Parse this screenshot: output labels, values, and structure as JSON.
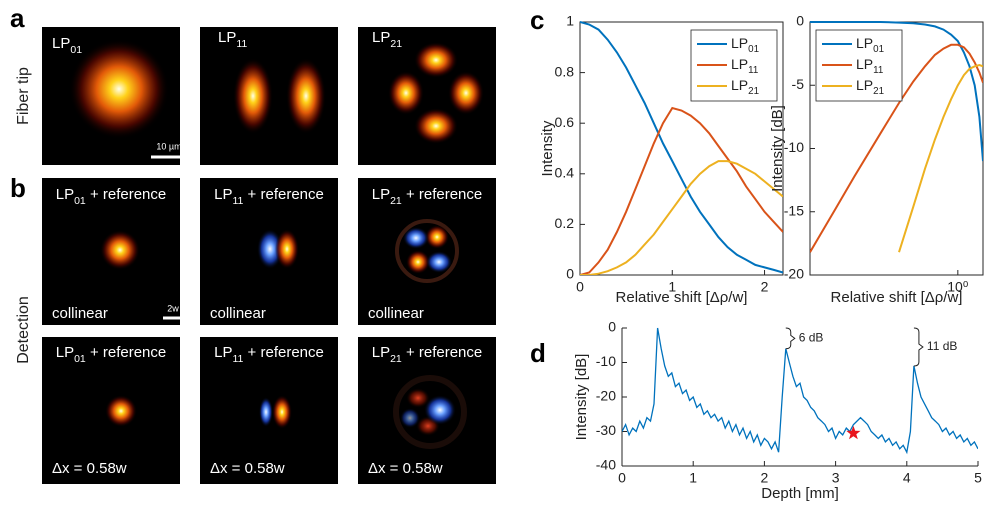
{
  "figure": {
    "panel_labels": [
      "a",
      "b",
      "c",
      "d"
    ],
    "row_labels": [
      "Fiber tip",
      "Detection"
    ],
    "fiber_tip": [
      {
        "label": "LP01",
        "scale_bar": "10 µm"
      },
      {
        "label": "LP11"
      },
      {
        "label": "LP21"
      }
    ],
    "collinear": [
      {
        "label": "LP01 + reference",
        "note": "collinear",
        "scale_bar": "2w"
      },
      {
        "label": "LP11 + reference",
        "note": "collinear"
      },
      {
        "label": "LP21 + reference",
        "note": "collinear"
      }
    ],
    "shifted": [
      {
        "label": "LP01 + reference",
        "note": "Δx = 0.58w"
      },
      {
        "label": "LP11 + reference",
        "note": "Δx = 0.58w"
      },
      {
        "label": "LP21 + reference",
        "note": "Δx = 0.58w"
      }
    ]
  },
  "chart_data": [
    {
      "type": "line",
      "xlabel": "Relative shift [Δρ/w]",
      "ylabel": "Intensity",
      "legend": "upper right",
      "box": true,
      "x": [
        0,
        0.1,
        0.2,
        0.3,
        0.4,
        0.5,
        0.6,
        0.7,
        0.8,
        0.9,
        1,
        1.1,
        1.2,
        1.3,
        1.4,
        1.5,
        1.6,
        1.7,
        1.8,
        1.9,
        2,
        2.1,
        2.2
      ],
      "xlim": [
        0,
        2.2
      ],
      "xticks": [
        0,
        1,
        2
      ],
      "ylim": [
        0,
        1
      ],
      "yticks": [
        0,
        0.2,
        0.4,
        0.6,
        0.8,
        1
      ],
      "series": [
        {
          "name": "LP01",
          "color": "#0072bd",
          "values": [
            1,
            0.99,
            0.97,
            0.93,
            0.88,
            0.82,
            0.75,
            0.68,
            0.6,
            0.52,
            0.45,
            0.38,
            0.31,
            0.25,
            0.2,
            0.15,
            0.11,
            0.08,
            0.06,
            0.04,
            0.03,
            0.02,
            0.01
          ]
        },
        {
          "name": "LP11",
          "color": "#d95319",
          "values": [
            0,
            0.01,
            0.05,
            0.1,
            0.17,
            0.25,
            0.34,
            0.43,
            0.52,
            0.6,
            0.66,
            0.65,
            0.63,
            0.6,
            0.56,
            0.51,
            0.46,
            0.41,
            0.35,
            0.3,
            0.25,
            0.21,
            0.17
          ]
        },
        {
          "name": "LP21",
          "color": "#edb120",
          "values": [
            0,
            0,
            0.005,
            0.015,
            0.03,
            0.05,
            0.08,
            0.12,
            0.16,
            0.21,
            0.26,
            0.31,
            0.36,
            0.4,
            0.43,
            0.45,
            0.45,
            0.44,
            0.42,
            0.4,
            0.37,
            0.34,
            0.31
          ]
        }
      ]
    },
    {
      "type": "line",
      "xscale": "log",
      "xlabel": "Relative shift [Δρ/w]",
      "ylabel": "Intensity [dB]",
      "legend": "upper left",
      "box": true,
      "x": [
        0.1,
        0.15,
        0.2,
        0.3,
        0.4,
        0.5,
        0.6,
        0.7,
        0.8,
        0.9,
        1,
        1.1,
        1.2,
        1.3,
        1.4,
        1.48
      ],
      "xlim": [
        0.1,
        1.48
      ],
      "xticks": [
        {
          "value": 1,
          "label": "10⁰"
        }
      ],
      "ylim": [
        -20,
        0
      ],
      "yticks": [
        0,
        -5,
        -10,
        -15,
        -20
      ],
      "series": [
        {
          "name": "LP01",
          "color": "#0072bd",
          "values": [
            0,
            0,
            0,
            0,
            -0.05,
            -0.1,
            -0.2,
            -0.35,
            -0.6,
            -1,
            -1.5,
            -2.4,
            -3.5,
            -5,
            -7.5,
            -11
          ]
        },
        {
          "name": "LP11",
          "color": "#d95319",
          "values": [
            -18.2,
            -14.7,
            -12.2,
            -8.8,
            -6.4,
            -4.7,
            -3.5,
            -2.6,
            -2.1,
            -1.8,
            -1.8,
            -2,
            -2.5,
            -3.2,
            -4,
            -4.8
          ]
        },
        {
          "name": "LP21",
          "color": "#edb120",
          "values": [
            null,
            null,
            null,
            null,
            -18.2,
            -14.6,
            -11.6,
            -9.3,
            -7.5,
            -6.1,
            -5,
            -4.2,
            -3.7,
            -3.5,
            -3.4,
            -3.5
          ]
        }
      ]
    },
    {
      "type": "line",
      "xlabel": "Depth [mm]",
      "ylabel": "Intensity [dB]",
      "box": false,
      "x": [
        0,
        0.05,
        0.1,
        0.15,
        0.2,
        0.25,
        0.3,
        0.35,
        0.4,
        0.45,
        0.5,
        0.55,
        0.6,
        0.65,
        0.7,
        0.75,
        0.8,
        0.85,
        0.9,
        0.95,
        1,
        1.05,
        1.1,
        1.15,
        1.2,
        1.25,
        1.3,
        1.35,
        1.4,
        1.45,
        1.5,
        1.55,
        1.6,
        1.65,
        1.7,
        1.75,
        1.8,
        1.85,
        1.9,
        1.95,
        2,
        2.05,
        2.1,
        2.15,
        2.2,
        2.25,
        2.3,
        2.35,
        2.4,
        2.45,
        2.5,
        2.55,
        2.6,
        2.65,
        2.7,
        2.75,
        2.8,
        2.85,
        2.9,
        2.95,
        3,
        3.05,
        3.1,
        3.15,
        3.2,
        3.25,
        3.3,
        3.35,
        3.4,
        3.45,
        3.5,
        3.55,
        3.6,
        3.65,
        3.7,
        3.75,
        3.8,
        3.85,
        3.9,
        3.95,
        4,
        4.05,
        4.1,
        4.15,
        4.2,
        4.25,
        4.3,
        4.35,
        4.4,
        4.45,
        4.5,
        4.55,
        4.6,
        4.65,
        4.7,
        4.75,
        4.8,
        4.85,
        4.9,
        4.95,
        5
      ],
      "xlim": [
        0,
        5
      ],
      "xticks": [
        0,
        1,
        2,
        3,
        4,
        5
      ],
      "ylim": [
        -40,
        0
      ],
      "yticks": [
        0,
        -10,
        -20,
        -30,
        -40
      ],
      "series": [
        {
          "color": "#0072bd",
          "values": [
            -30,
            -28,
            -31,
            -29,
            -30,
            -27,
            -29,
            -26,
            -27,
            -22,
            0,
            -6,
            -11,
            -14,
            -13,
            -17,
            -16,
            -19,
            -18,
            -21,
            -20,
            -23,
            -22,
            -25,
            -24,
            -26,
            -25,
            -27,
            -26,
            -29,
            -27,
            -30,
            -28,
            -31,
            -29,
            -32,
            -30,
            -33,
            -31,
            -34,
            -32,
            -33,
            -35,
            -33,
            -36,
            -20,
            -6,
            -10,
            -14,
            -17,
            -16,
            -20,
            -21,
            -23,
            -24,
            -26,
            -27,
            -28,
            -30,
            -29,
            -32,
            -30,
            -31,
            -29,
            -30,
            -28,
            -27,
            -26,
            -27,
            -28,
            -30,
            -31,
            -32,
            -31,
            -33,
            -32,
            -34,
            -33,
            -35,
            -34,
            -36,
            -30,
            -11,
            -16,
            -20,
            -22,
            -24,
            -26,
            -27,
            -28,
            -30,
            -29,
            -31,
            -30,
            -32,
            -31,
            -33,
            -32,
            -34,
            -33,
            -35
          ]
        }
      ],
      "marker": {
        "x": 3.25,
        "y": -30.5,
        "color": "#e8141c"
      },
      "annotations": [
        {
          "text": "6 dB",
          "x": 2.3,
          "y1": 0,
          "y2": -6
        },
        {
          "text": "11 dB",
          "x": 4.1,
          "y1": 0,
          "y2": -11
        }
      ]
    }
  ]
}
